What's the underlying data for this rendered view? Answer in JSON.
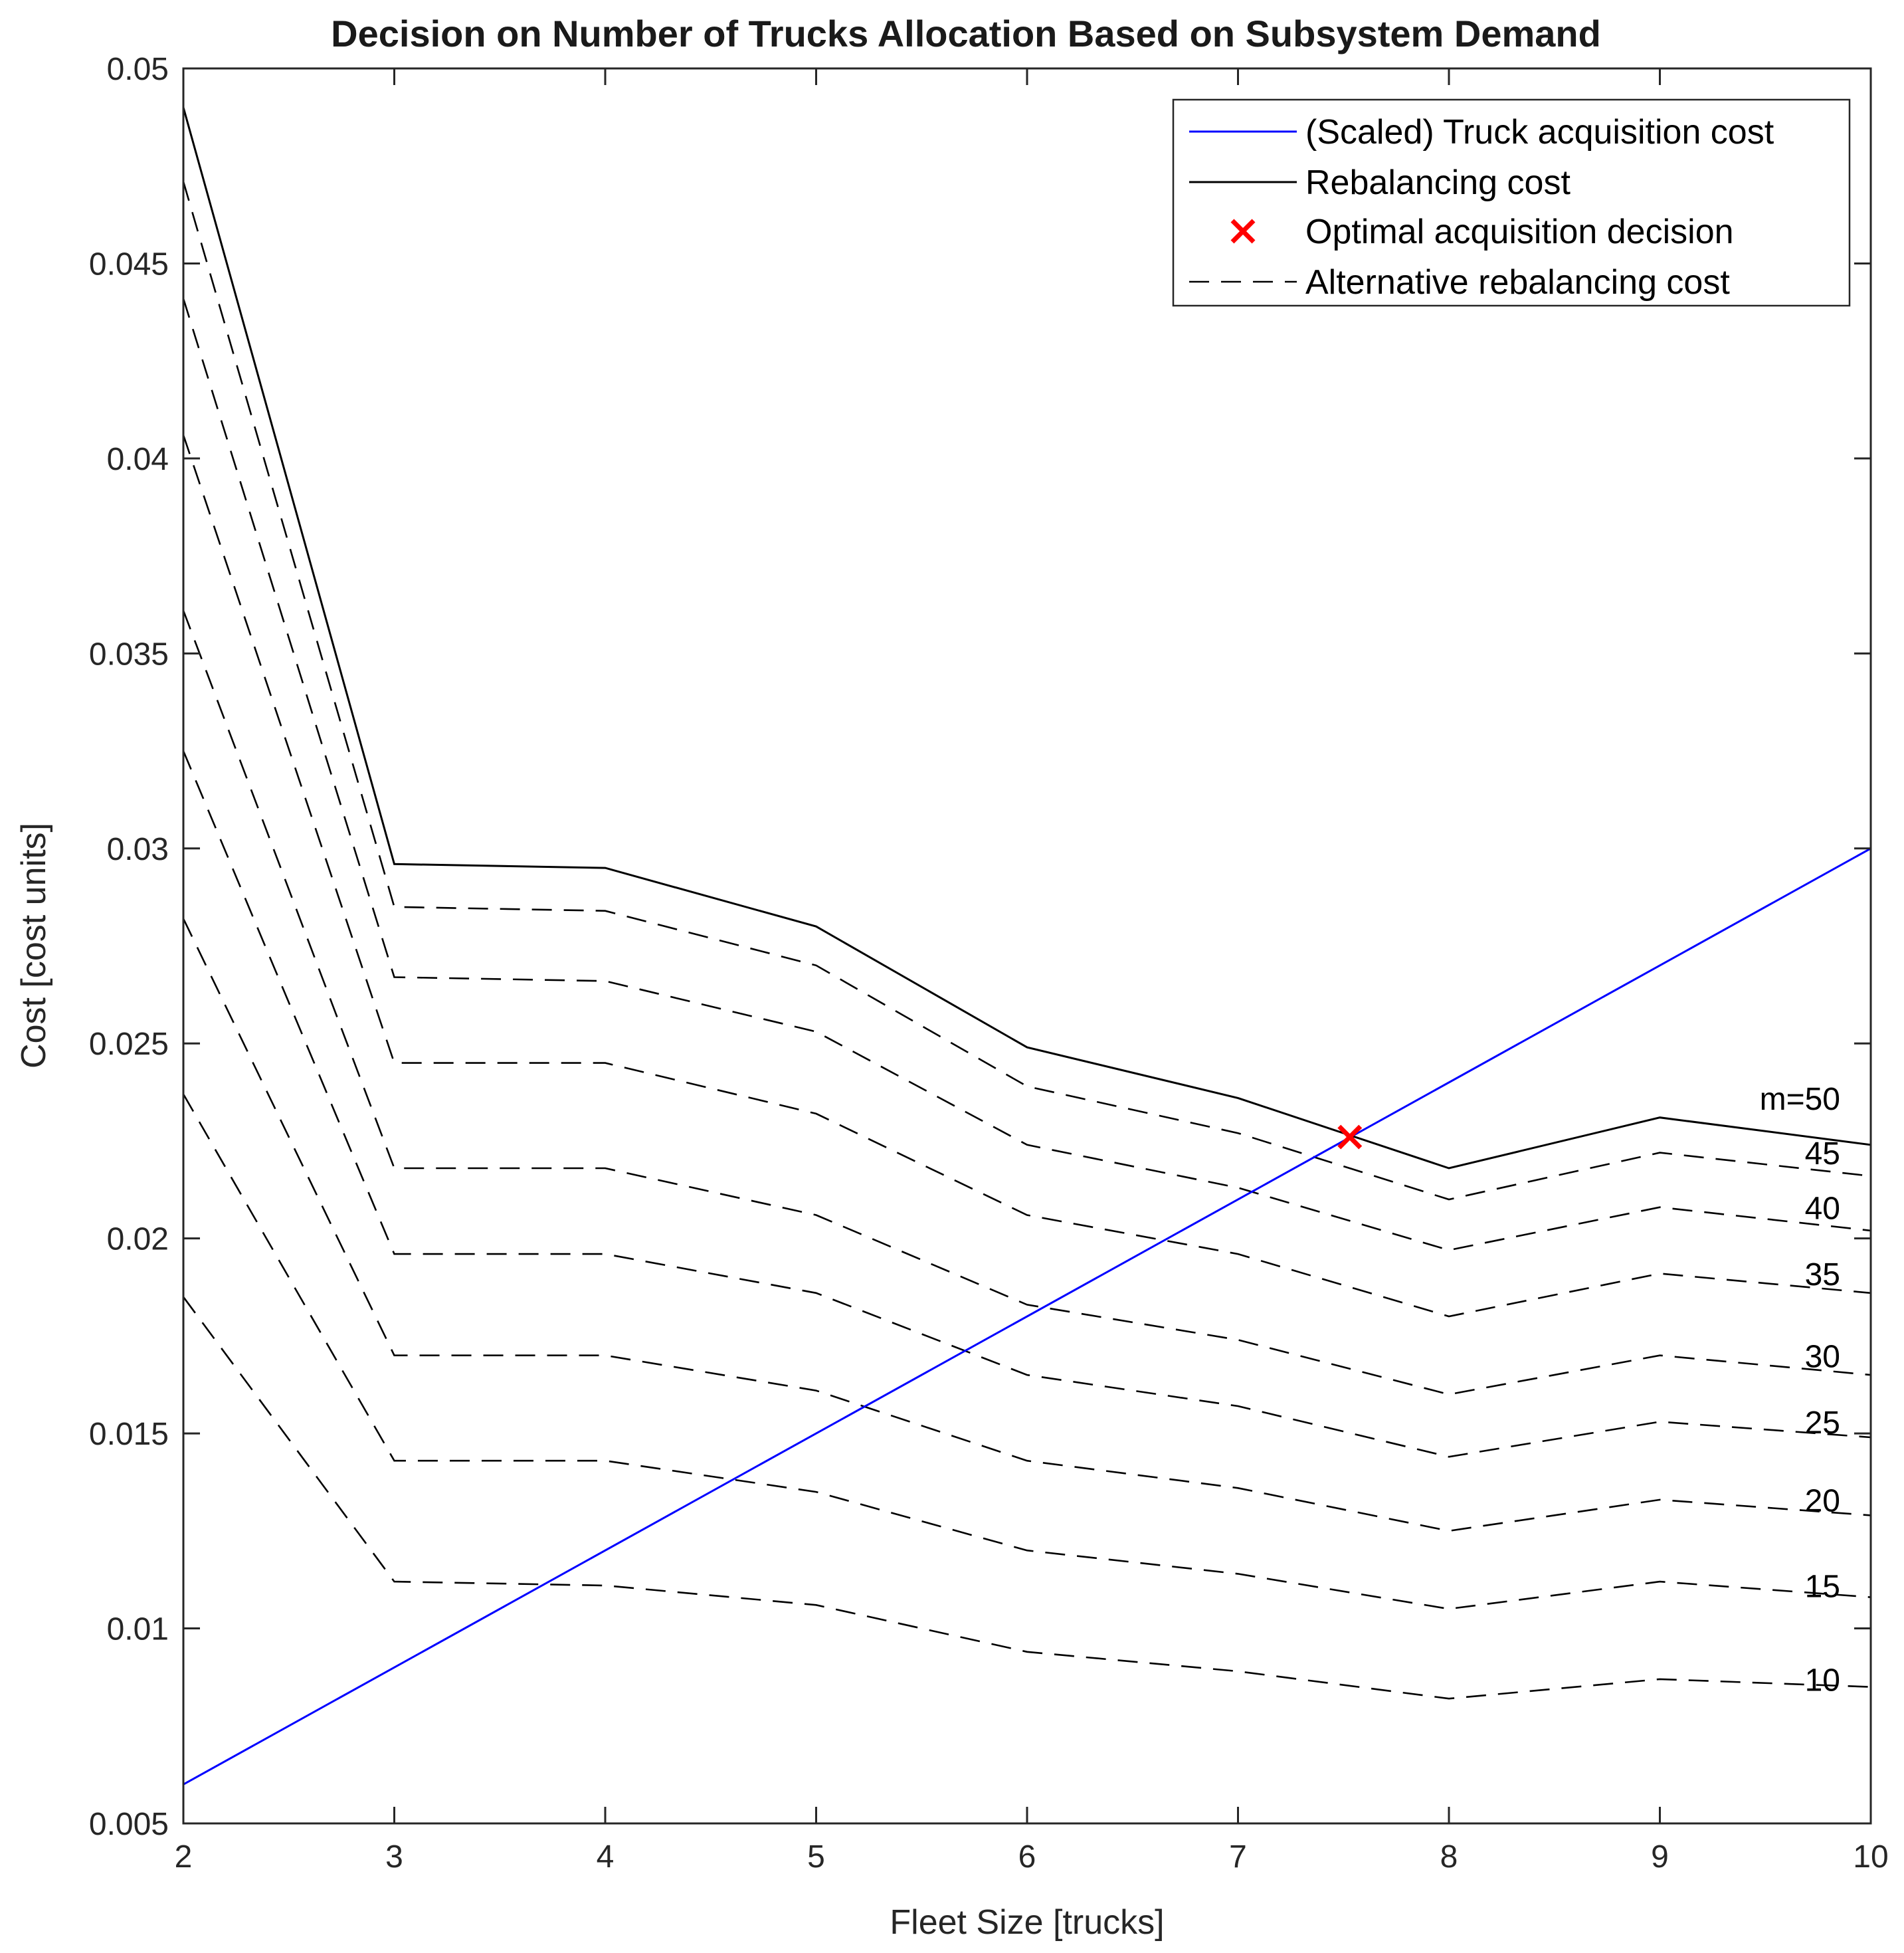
{
  "colors": {
    "acquisition": "#0000ff",
    "rebalancing": "#000000",
    "optimal": "#ff0000",
    "axis": "#262626"
  },
  "chart_data": {
    "type": "line",
    "title": "Decision on Number of Trucks Allocation Based on Subsystem Demand",
    "xlabel": "Fleet Size [trucks]",
    "ylabel": "Cost [cost units]",
    "xlim": [
      2,
      10
    ],
    "ylim": [
      0.005,
      0.05
    ],
    "xticks": [
      2,
      3,
      4,
      5,
      6,
      7,
      8,
      9,
      10
    ],
    "xtick_labels": [
      "2",
      "3",
      "4",
      "5",
      "6",
      "7",
      "8",
      "9",
      "10"
    ],
    "yticks": [
      0.005,
      0.01,
      0.015,
      0.02,
      0.025,
      0.03,
      0.035,
      0.04,
      0.045,
      0.05
    ],
    "ytick_labels": [
      "0.005",
      "0.01",
      "0.015",
      "0.02",
      "0.025",
      "0.03",
      "0.035",
      "0.04",
      "0.045",
      "0.05"
    ],
    "grid": false,
    "legend_position": "top-right",
    "legend": [
      {
        "label": "(Scaled) Truck acquisition cost",
        "style": "solid-blue"
      },
      {
        "label": "Rebalancing cost",
        "style": "solid-black"
      },
      {
        "label": "Optimal acquisition decision",
        "style": "red-x"
      },
      {
        "label": "Alternative rebalancing cost",
        "style": "dashed-black"
      }
    ],
    "acquisition_cost": {
      "name": "(Scaled) Truck acquisition cost",
      "x": [
        2,
        10
      ],
      "y": [
        0.006,
        0.03
      ]
    },
    "rebalancing_cost": {
      "name": "Rebalancing cost",
      "x": [
        2,
        3,
        4,
        5,
        6,
        7,
        8,
        9,
        10
      ],
      "y": [
        0.049,
        0.0296,
        0.0295,
        0.028,
        0.0249,
        0.0236,
        0.0218,
        0.0231,
        0.0224
      ]
    },
    "optimal_decision": {
      "name": "Optimal acquisition decision",
      "x": 7.53,
      "y": 0.0226
    },
    "alternative_series": [
      {
        "label": "45",
        "x": [
          2,
          3,
          4,
          5,
          6,
          7,
          8,
          9,
          10
        ],
        "y": [
          0.0471,
          0.0285,
          0.0284,
          0.027,
          0.0239,
          0.0227,
          0.021,
          0.0222,
          0.0216
        ]
      },
      {
        "label": "40",
        "x": [
          2,
          3,
          4,
          5,
          6,
          7,
          8,
          9,
          10
        ],
        "y": [
          0.0441,
          0.0267,
          0.0266,
          0.0253,
          0.0224,
          0.0213,
          0.0197,
          0.0208,
          0.0202
        ]
      },
      {
        "label": "35",
        "x": [
          2,
          3,
          4,
          5,
          6,
          7,
          8,
          9,
          10
        ],
        "y": [
          0.0406,
          0.0245,
          0.0245,
          0.0232,
          0.0206,
          0.0196,
          0.018,
          0.0191,
          0.0186
        ]
      },
      {
        "label": "30",
        "x": [
          2,
          3,
          4,
          5,
          6,
          7,
          8,
          9,
          10
        ],
        "y": [
          0.0361,
          0.0218,
          0.0218,
          0.0206,
          0.0183,
          0.0174,
          0.016,
          0.017,
          0.0165
        ]
      },
      {
        "label": "25",
        "x": [
          2,
          3,
          4,
          5,
          6,
          7,
          8,
          9,
          10
        ],
        "y": [
          0.0325,
          0.0196,
          0.0196,
          0.0186,
          0.0165,
          0.0157,
          0.0144,
          0.0153,
          0.0149
        ]
      },
      {
        "label": "20",
        "x": [
          2,
          3,
          4,
          5,
          6,
          7,
          8,
          9,
          10
        ],
        "y": [
          0.0282,
          0.017,
          0.017,
          0.0161,
          0.0143,
          0.0136,
          0.0125,
          0.0133,
          0.0129
        ]
      },
      {
        "label": "15",
        "x": [
          2,
          3,
          4,
          5,
          6,
          7,
          8,
          9,
          10
        ],
        "y": [
          0.0237,
          0.0143,
          0.0143,
          0.0135,
          0.012,
          0.0114,
          0.0105,
          0.0112,
          0.0108
        ]
      },
      {
        "label": "10",
        "x": [
          2,
          3,
          4,
          5,
          6,
          7,
          8,
          9,
          10
        ],
        "y": [
          0.0185,
          0.0112,
          0.0111,
          0.0106,
          0.0094,
          0.0089,
          0.0082,
          0.0087,
          0.0085
        ]
      }
    ],
    "curve_labels": [
      {
        "text": "m=50",
        "y": 0.0233
      },
      {
        "text": "45",
        "y": 0.0219
      },
      {
        "text": "40",
        "y": 0.0205
      },
      {
        "text": "35",
        "y": 0.0188
      },
      {
        "text": "30",
        "y": 0.0167
      },
      {
        "text": "25",
        "y": 0.015
      },
      {
        "text": "20",
        "y": 0.013
      },
      {
        "text": "15",
        "y": 0.0108
      },
      {
        "text": "10",
        "y": 0.0084
      }
    ]
  }
}
